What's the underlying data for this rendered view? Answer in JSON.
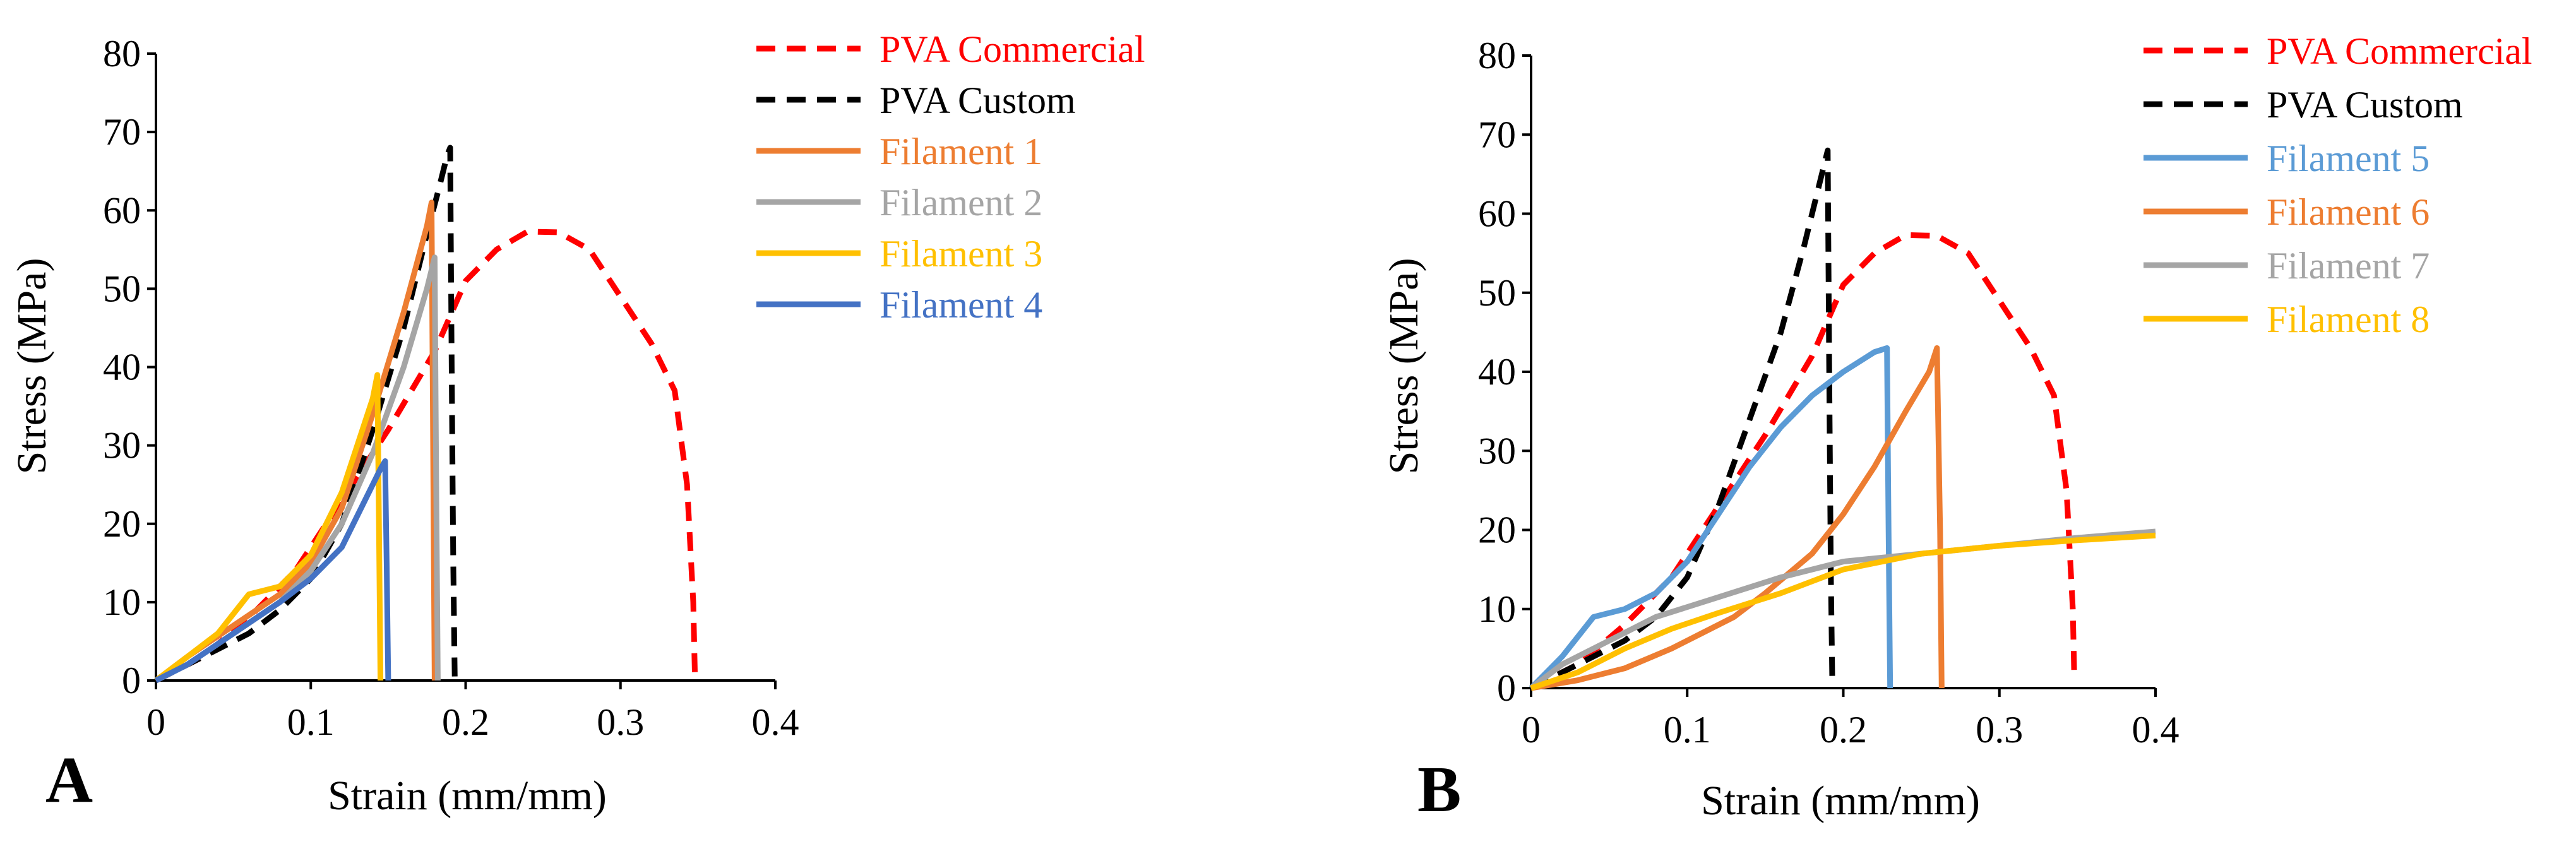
{
  "chart_data": [
    {
      "panel": "A",
      "type": "line",
      "xlabel": "Strain (mm/mm)",
      "ylabel": "Stress (MPa)",
      "xlim": [
        0,
        0.4
      ],
      "ylim": [
        0,
        80
      ],
      "xticks": [
        0,
        0.1,
        0.2,
        0.3,
        0.4
      ],
      "xtick_labels": [
        "0",
        "0.1",
        "0.2",
        "0.3",
        "0.4"
      ],
      "yticks": [
        0,
        10,
        20,
        30,
        40,
        50,
        60,
        70,
        80
      ],
      "ytick_labels": [
        "0",
        "10",
        "20",
        "30",
        "40",
        "50",
        "60",
        "70",
        "80"
      ],
      "legend_position": "right",
      "series": [
        {
          "name": "PVA Commercial",
          "color": "#ff0000",
          "dash": "dashed",
          "points": [
            [
              0,
              0
            ],
            [
              0.03,
              3
            ],
            [
              0.06,
              8
            ],
            [
              0.09,
              14
            ],
            [
              0.12,
              23
            ],
            [
              0.15,
              32
            ],
            [
              0.18,
              42
            ],
            [
              0.2,
              51
            ],
            [
              0.22,
              55
            ],
            [
              0.24,
              57.3
            ],
            [
              0.26,
              57.2
            ],
            [
              0.28,
              55
            ],
            [
              0.3,
              49
            ],
            [
              0.32,
              43
            ],
            [
              0.335,
              37
            ],
            [
              0.343,
              25
            ],
            [
              0.347,
              10
            ],
            [
              0.348,
              1
            ]
          ]
        },
        {
          "name": "PVA Custom",
          "color": "#000000",
          "dash": "dashed",
          "points": [
            [
              0,
              0
            ],
            [
              0.03,
              3
            ],
            [
              0.06,
              6
            ],
            [
              0.08,
              9
            ],
            [
              0.1,
              13
            ],
            [
              0.12,
              20
            ],
            [
              0.14,
              32
            ],
            [
              0.16,
              45
            ],
            [
              0.175,
              57
            ],
            [
              0.183,
              63
            ],
            [
              0.188,
              67
            ],
            [
              0.19,
              68
            ],
            [
              0.191,
              40
            ],
            [
              0.192,
              15
            ],
            [
              0.193,
              0
            ]
          ]
        },
        {
          "name": "Filament 1",
          "color": "#ed7d31",
          "dash": "solid",
          "points": [
            [
              0,
              0
            ],
            [
              0.02,
              3
            ],
            [
              0.05,
              7
            ],
            [
              0.08,
              11
            ],
            [
              0.1,
              15
            ],
            [
              0.12,
              22
            ],
            [
              0.14,
              34
            ],
            [
              0.16,
              47
            ],
            [
              0.175,
              58
            ],
            [
              0.178,
              61
            ],
            [
              0.179,
              30
            ],
            [
              0.18,
              0
            ]
          ]
        },
        {
          "name": "Filament 2",
          "color": "#a5a5a5",
          "dash": "solid",
          "points": [
            [
              0,
              0
            ],
            [
              0.02,
              2
            ],
            [
              0.05,
              6
            ],
            [
              0.08,
              10
            ],
            [
              0.1,
              14
            ],
            [
              0.12,
              20
            ],
            [
              0.14,
              29
            ],
            [
              0.16,
              40
            ],
            [
              0.175,
              50
            ],
            [
              0.18,
              54
            ],
            [
              0.181,
              25
            ],
            [
              0.182,
              0
            ]
          ]
        },
        {
          "name": "Filament 3",
          "color": "#ffc000",
          "dash": "solid",
          "points": [
            [
              0,
              0
            ],
            [
              0.02,
              3
            ],
            [
              0.04,
              6
            ],
            [
              0.06,
              11
            ],
            [
              0.07,
              11.5
            ],
            [
              0.08,
              12
            ],
            [
              0.1,
              16
            ],
            [
              0.12,
              24
            ],
            [
              0.14,
              36
            ],
            [
              0.143,
              39
            ],
            [
              0.144,
              20
            ],
            [
              0.145,
              0
            ]
          ]
        },
        {
          "name": "Filament 4",
          "color": "#4472c4",
          "dash": "solid",
          "points": [
            [
              0,
              0
            ],
            [
              0.02,
              2
            ],
            [
              0.05,
              6
            ],
            [
              0.08,
              10
            ],
            [
              0.1,
              13
            ],
            [
              0.12,
              17
            ],
            [
              0.135,
              23
            ],
            [
              0.145,
              27
            ],
            [
              0.148,
              28
            ],
            [
              0.149,
              15
            ],
            [
              0.15,
              0
            ]
          ]
        }
      ]
    },
    {
      "panel": "B",
      "type": "line",
      "xlabel": "Strain (mm/mm)",
      "ylabel": "Stress (MPa)",
      "xlim": [
        0,
        0.4
      ],
      "ylim": [
        0,
        80
      ],
      "xticks": [
        0,
        0.1,
        0.2,
        0.3,
        0.4
      ],
      "xtick_labels": [
        "0",
        "0.1",
        "0.2",
        "0.3",
        "0.4"
      ],
      "yticks": [
        0,
        10,
        20,
        30,
        40,
        50,
        60,
        70,
        80
      ],
      "ytick_labels": [
        "0",
        "10",
        "20",
        "30",
        "40",
        "50",
        "60",
        "70",
        "80"
      ],
      "legend_position": "right",
      "series": [
        {
          "name": "PVA Commercial",
          "color": "#ff0000",
          "dash": "dashed",
          "points": [
            [
              0,
              0
            ],
            [
              0.03,
              3
            ],
            [
              0.06,
              8
            ],
            [
              0.09,
              14
            ],
            [
              0.12,
              23
            ],
            [
              0.15,
              32
            ],
            [
              0.18,
              42
            ],
            [
              0.2,
              51
            ],
            [
              0.22,
              55
            ],
            [
              0.24,
              57.3
            ],
            [
              0.26,
              57.2
            ],
            [
              0.28,
              55
            ],
            [
              0.3,
              49
            ],
            [
              0.32,
              43
            ],
            [
              0.335,
              37
            ],
            [
              0.343,
              25
            ],
            [
              0.347,
              10
            ],
            [
              0.348,
              1
            ]
          ]
        },
        {
          "name": "PVA Custom",
          "color": "#000000",
          "dash": "dashed",
          "points": [
            [
              0,
              0
            ],
            [
              0.03,
              3
            ],
            [
              0.06,
              6
            ],
            [
              0.08,
              9
            ],
            [
              0.1,
              14
            ],
            [
              0.12,
              23
            ],
            [
              0.14,
              34
            ],
            [
              0.16,
              45
            ],
            [
              0.175,
              56
            ],
            [
              0.185,
              64
            ],
            [
              0.19,
              68
            ],
            [
              0.191,
              40
            ],
            [
              0.192,
              15
            ],
            [
              0.193,
              0
            ]
          ]
        },
        {
          "name": "Filament 5",
          "color": "#5b9bd5",
          "dash": "solid",
          "points": [
            [
              0,
              0
            ],
            [
              0.02,
              4
            ],
            [
              0.04,
              9
            ],
            [
              0.06,
              10
            ],
            [
              0.08,
              12
            ],
            [
              0.1,
              16
            ],
            [
              0.12,
              22
            ],
            [
              0.14,
              28
            ],
            [
              0.16,
              33
            ],
            [
              0.18,
              37
            ],
            [
              0.2,
              40
            ],
            [
              0.22,
              42.5
            ],
            [
              0.228,
              43
            ],
            [
              0.229,
              20
            ],
            [
              0.23,
              0
            ]
          ]
        },
        {
          "name": "Filament 6",
          "color": "#ed7d31",
          "dash": "solid",
          "points": [
            [
              0,
              0
            ],
            [
              0.03,
              1
            ],
            [
              0.06,
              2.5
            ],
            [
              0.09,
              5
            ],
            [
              0.11,
              7
            ],
            [
              0.13,
              9
            ],
            [
              0.15,
              12
            ],
            [
              0.18,
              17
            ],
            [
              0.2,
              22
            ],
            [
              0.22,
              28
            ],
            [
              0.24,
              35
            ],
            [
              0.255,
              40
            ],
            [
              0.26,
              43
            ],
            [
              0.262,
              20
            ],
            [
              0.263,
              0
            ]
          ]
        },
        {
          "name": "Filament 7",
          "color": "#a5a5a5",
          "dash": "solid",
          "points": [
            [
              0,
              0
            ],
            [
              0.02,
              3
            ],
            [
              0.05,
              6
            ],
            [
              0.08,
              9
            ],
            [
              0.12,
              11.5
            ],
            [
              0.16,
              14
            ],
            [
              0.2,
              16
            ],
            [
              0.25,
              17
            ],
            [
              0.3,
              18
            ],
            [
              0.35,
              19
            ],
            [
              0.4,
              19.8
            ]
          ]
        },
        {
          "name": "Filament 8",
          "color": "#ffc000",
          "dash": "solid",
          "points": [
            [
              0,
              0
            ],
            [
              0.03,
              2
            ],
            [
              0.06,
              5
            ],
            [
              0.09,
              7.5
            ],
            [
              0.12,
              9.5
            ],
            [
              0.16,
              12
            ],
            [
              0.2,
              15
            ],
            [
              0.25,
              17
            ],
            [
              0.3,
              18
            ],
            [
              0.35,
              18.7
            ],
            [
              0.4,
              19.3
            ]
          ]
        }
      ]
    }
  ]
}
